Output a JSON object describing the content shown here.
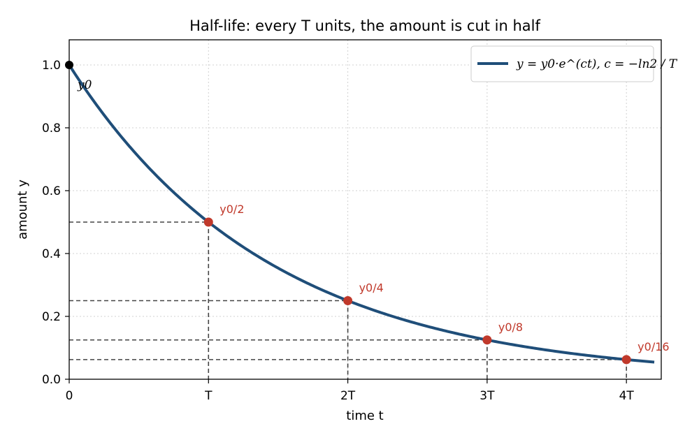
{
  "chart_data": {
    "type": "line",
    "title": "Half-life: every T units, the amount is cut in half",
    "xlabel": "time  t",
    "ylabel": "amount  y",
    "xlim": [
      0,
      4.25
    ],
    "ylim": [
      0,
      1.08
    ],
    "x_ticks": [
      {
        "value": 0,
        "label": "0"
      },
      {
        "value": 1,
        "label": "T"
      },
      {
        "value": 2,
        "label": "2T"
      },
      {
        "value": 3,
        "label": "3T"
      },
      {
        "value": 4,
        "label": "4T"
      }
    ],
    "y_ticks": [
      {
        "value": 0.0,
        "label": "0.0"
      },
      {
        "value": 0.2,
        "label": "0.2"
      },
      {
        "value": 0.4,
        "label": "0.4"
      },
      {
        "value": 0.6,
        "label": "0.6"
      },
      {
        "value": 0.8,
        "label": "0.8"
      },
      {
        "value": 1.0,
        "label": "1.0"
      }
    ],
    "grid": true,
    "legend_position": "top-right",
    "series": [
      {
        "name": "y = y0·e^(ct),  c = −ln2 / T",
        "function": "y0 * 2^(-t/T)",
        "y0": 1.0,
        "x_end": 4.2,
        "color": "#1f4e79"
      }
    ],
    "start_point": {
      "x": 0,
      "y": 1.0,
      "label": "y0",
      "color": "#000000"
    },
    "half_points": [
      {
        "x": 1,
        "y": 0.5,
        "label": "y0/2"
      },
      {
        "x": 2,
        "y": 0.25,
        "label": "y0/4"
      },
      {
        "x": 3,
        "y": 0.125,
        "label": "y0/8"
      },
      {
        "x": 4,
        "y": 0.0625,
        "label": "y0/16"
      }
    ],
    "colors": {
      "curve": "#1f4e79",
      "points": "#c0392b",
      "guides": "#444444"
    }
  }
}
